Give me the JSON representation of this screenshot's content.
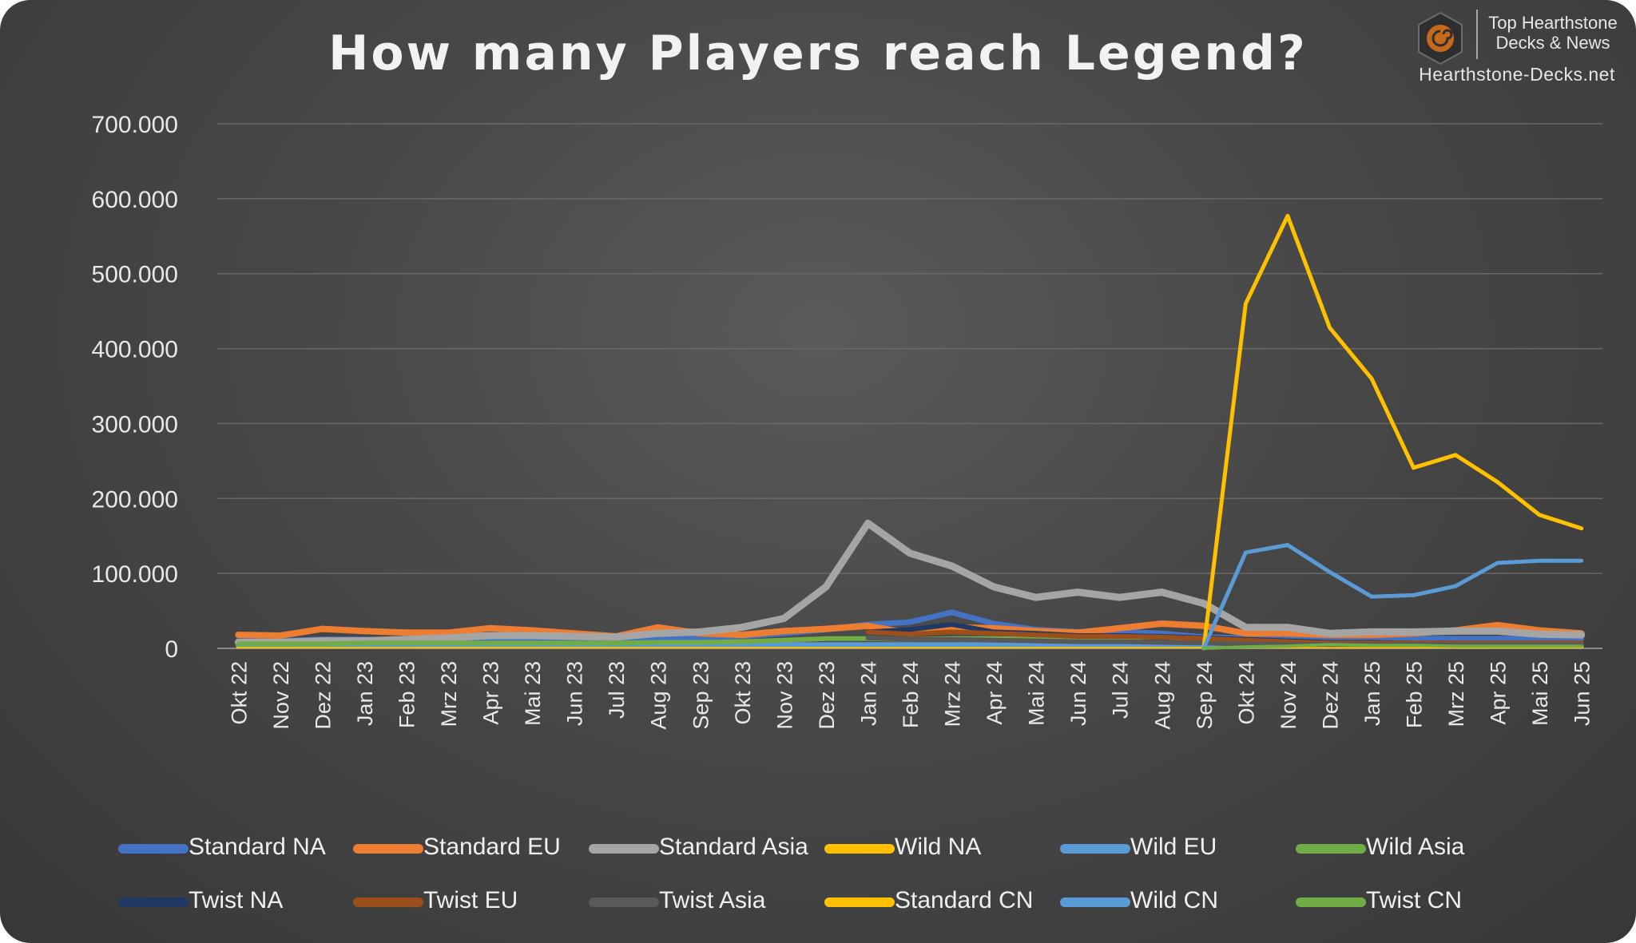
{
  "brand": {
    "line1": "Top Hearthstone",
    "line2": "Decks & News",
    "site": "Hearthstone-Decks.net",
    "logo_icon": "hearthstone-swirl-icon",
    "logo_color": "#c56a1a"
  },
  "chart_data": {
    "type": "line",
    "title": "How many Players reach Legend?",
    "xlabel": "",
    "ylabel": "",
    "ylim": [
      0,
      700000
    ],
    "yticks": [
      0,
      100000,
      200000,
      300000,
      400000,
      500000,
      600000,
      700000
    ],
    "ytick_labels": [
      "0",
      "100.000",
      "200.000",
      "300.000",
      "400.000",
      "500.000",
      "600.000",
      "700.000"
    ],
    "grid": true,
    "legend_position": "bottom",
    "categories": [
      "Okt 22",
      "Nov 22",
      "Dez 22",
      "Jan 23",
      "Feb 23",
      "Mrz 23",
      "Apr 23",
      "Mai 23",
      "Jun 23",
      "Jul 23",
      "Aug 23",
      "Sep 23",
      "Okt 23",
      "Nov 23",
      "Dez 23",
      "Jan 24",
      "Feb 24",
      "Mrz 24",
      "Apr 24",
      "Mai 24",
      "Jun 24",
      "Jul 24",
      "Aug 24",
      "Sep 24",
      "Okt 24",
      "Nov 24",
      "Dez 24",
      "Jan 25",
      "Feb 25",
      "Mrz 25",
      "Apr 25",
      "Mai 25",
      "Jun 25"
    ],
    "series": [
      {
        "name": "Standard NA",
        "color": "#4472c4",
        "width": 7,
        "values": [
          10000,
          10000,
          12000,
          12000,
          11000,
          11000,
          13000,
          13000,
          11000,
          10000,
          12000,
          14000,
          16000,
          20000,
          25000,
          32000,
          35000,
          48000,
          33000,
          25000,
          22000,
          22000,
          20000,
          15000,
          14000,
          16000,
          12000,
          13000,
          13000,
          13000,
          13000,
          13000,
          13000
        ]
      },
      {
        "name": "Standard EU",
        "color": "#ed7d31",
        "width": 8,
        "values": [
          18000,
          17000,
          26000,
          23000,
          21000,
          21000,
          27000,
          24000,
          20000,
          16000,
          28000,
          20000,
          18000,
          23000,
          26000,
          30000,
          20000,
          28000,
          27000,
          23000,
          21000,
          27000,
          33000,
          30000,
          20000,
          20000,
          18000,
          18000,
          20000,
          24000,
          31000,
          24000,
          20000
        ]
      },
      {
        "name": "Standard Asia",
        "color": "#a5a5a5",
        "width": 9,
        "values": [
          8000,
          8000,
          10000,
          10000,
          12000,
          14000,
          17000,
          17000,
          16000,
          15000,
          20000,
          22000,
          28000,
          40000,
          82000,
          167000,
          127000,
          110000,
          82000,
          68000,
          75000,
          68000,
          75000,
          60000,
          28000,
          28000,
          20000,
          22000,
          22000,
          23000,
          23000,
          19000,
          18000
        ]
      },
      {
        "name": "Wild NA",
        "color": "#ffc000",
        "width": 6,
        "values": [
          3000,
          3000,
          3000,
          3000,
          3000,
          3000,
          3000,
          3000,
          3000,
          3000,
          3000,
          3000,
          3000,
          3000,
          3000,
          3000,
          3000,
          3000,
          3000,
          3000,
          3000,
          3000,
          3000,
          3000,
          3000,
          3000,
          3000,
          3000,
          3000,
          3000,
          3000,
          3000,
          3000
        ]
      },
      {
        "name": "Wild EU",
        "color": "#5b9bd5",
        "width": 6,
        "values": [
          5000,
          5000,
          5000,
          5000,
          5000,
          5000,
          5000,
          5000,
          5000,
          5000,
          5000,
          5000,
          5000,
          5000,
          5000,
          5000,
          5000,
          5000,
          5000,
          5000,
          5000,
          5000,
          5000,
          5000,
          5000,
          5000,
          5000,
          5000,
          5000,
          5000,
          5000,
          5000,
          5000
        ]
      },
      {
        "name": "Wild Asia",
        "color": "#70ad47",
        "width": 6,
        "values": [
          6000,
          6000,
          6000,
          7000,
          7000,
          7000,
          7000,
          7000,
          7000,
          7000,
          8000,
          8000,
          9000,
          11000,
          13000,
          13000,
          12000,
          13000,
          13000,
          12000,
          12000,
          14000,
          16000,
          10000,
          8000,
          6000,
          6000,
          6000,
          6000,
          6000,
          6000,
          6000,
          6000
        ]
      },
      {
        "name": "Twist NA",
        "color": "#1f3864",
        "width": 6,
        "values": [
          null,
          null,
          null,
          null,
          null,
          null,
          null,
          null,
          null,
          null,
          null,
          null,
          null,
          null,
          null,
          22000,
          25000,
          32000,
          22000,
          20000,
          17000,
          17000,
          16000,
          14000,
          12000,
          10000,
          8000,
          8000,
          7000,
          7000,
          7000,
          7000,
          7000
        ]
      },
      {
        "name": "Twist EU",
        "color": "#9c4f1b",
        "width": 6,
        "values": [
          null,
          null,
          null,
          null,
          null,
          null,
          null,
          null,
          null,
          null,
          null,
          null,
          null,
          null,
          null,
          22000,
          19000,
          22000,
          20000,
          18000,
          16000,
          16000,
          15000,
          13000,
          11000,
          9000,
          7000,
          7000,
          7000,
          7000,
          7000,
          7000,
          7000
        ]
      },
      {
        "name": "Twist Asia",
        "color": "#595959",
        "width": 6,
        "values": [
          null,
          null,
          null,
          null,
          null,
          null,
          null,
          null,
          null,
          null,
          null,
          null,
          null,
          null,
          null,
          14000,
          12000,
          12000,
          11000,
          10000,
          9000,
          9000,
          8000,
          7000,
          6000,
          5000,
          5000,
          5000,
          5000,
          5000,
          5000,
          5000,
          5000
        ]
      },
      {
        "name": "Standard CN",
        "color": "#ffc000",
        "width": 5,
        "values": [
          null,
          null,
          null,
          null,
          null,
          null,
          null,
          null,
          null,
          null,
          null,
          null,
          null,
          null,
          null,
          null,
          null,
          null,
          null,
          null,
          null,
          null,
          null,
          0,
          460000,
          577000,
          428000,
          360000,
          241000,
          258000,
          222000,
          178000,
          160000
        ]
      },
      {
        "name": "Wild CN",
        "color": "#5b9bd5",
        "width": 5,
        "values": [
          null,
          null,
          null,
          null,
          null,
          null,
          null,
          null,
          null,
          null,
          null,
          null,
          null,
          null,
          null,
          null,
          null,
          null,
          null,
          null,
          null,
          null,
          null,
          0,
          128000,
          138000,
          102000,
          69000,
          71000,
          83000,
          114000,
          117000,
          117000
        ]
      },
      {
        "name": "Twist CN",
        "color": "#70ad47",
        "width": 4,
        "values": [
          null,
          null,
          null,
          null,
          null,
          null,
          null,
          null,
          null,
          null,
          null,
          null,
          null,
          null,
          null,
          null,
          null,
          null,
          null,
          null,
          null,
          null,
          null,
          0,
          2000,
          3000,
          5000,
          4000,
          4000,
          3000,
          3000,
          3000,
          3000
        ]
      }
    ]
  }
}
